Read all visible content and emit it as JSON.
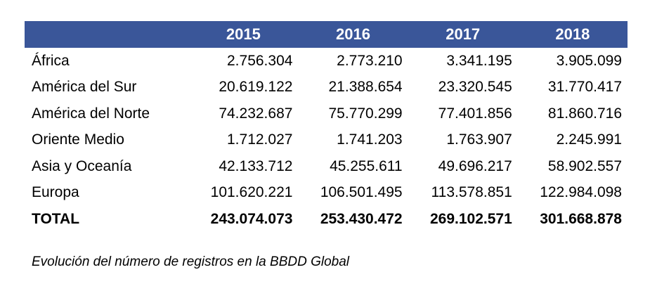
{
  "chart_data": {
    "type": "table",
    "columns": [
      "2015",
      "2016",
      "2017",
      "2018"
    ],
    "rows": [
      {
        "label": "África",
        "values": [
          "2.756.304",
          "2.773.210",
          "3.341.195",
          "3.905.099"
        ]
      },
      {
        "label": "América del Sur",
        "values": [
          "20.619.122",
          "21.388.654",
          "23.320.545",
          "31.770.417"
        ]
      },
      {
        "label": "América del Norte",
        "values": [
          "74.232.687",
          "75.770.299",
          "77.401.856",
          "81.860.716"
        ]
      },
      {
        "label": "Oriente Medio",
        "values": [
          "1.712.027",
          "1.741.203",
          "1.763.907",
          "2.245.991"
        ]
      },
      {
        "label": "Asia y Oceanía",
        "values": [
          "42.133.712",
          "45.255.611",
          "49.696.217",
          "58.902.557"
        ]
      },
      {
        "label": "Europa",
        "values": [
          "101.620.221",
          "106.501.495",
          "113.578.851",
          "122.984.098"
        ]
      }
    ],
    "total": {
      "label": "TOTAL",
      "values": [
        "243.074.073",
        "253.430.472",
        "269.102.571",
        "301.668.878"
      ]
    },
    "caption": "Evolución del número de registros en la BBDD Global",
    "header_color": "#3a5699"
  }
}
